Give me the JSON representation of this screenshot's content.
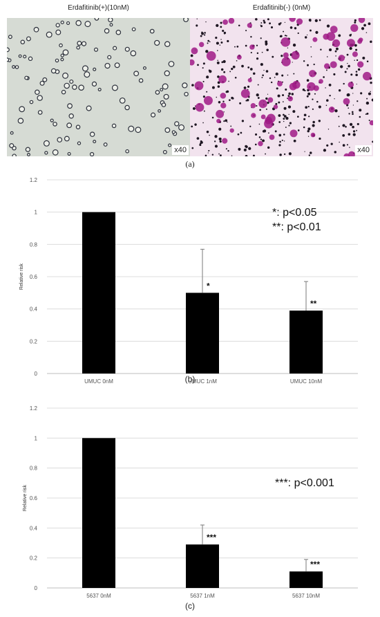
{
  "panel_a": {
    "left_title": "Erdafitinib(+)(10nM)",
    "right_title": "Erdafitinib(-) (0nM)",
    "left_mag": "x40",
    "right_mag": "x40",
    "label": "(a)",
    "left_bg": "#d6dbd4",
    "right_bg": "#f2e3ee",
    "stain_color": "#a01a86"
  },
  "chart_data": [
    {
      "type": "bar",
      "panel_label": "(b)",
      "categories": [
        "UMUC 0nM",
        "UMUC 1nM",
        "UMUC 10nM"
      ],
      "values": [
        1.0,
        0.5,
        0.39
      ],
      "error_upper": [
        0.0,
        0.27,
        0.18
      ],
      "significance": [
        "",
        "*",
        "**"
      ],
      "ylabel": "Relative risk",
      "ylim": [
        0,
        1.2
      ],
      "yticks": [
        "0",
        "0.2",
        "0.4",
        "0.6",
        "0.8",
        "1",
        "1.2"
      ],
      "legend_lines": [
        "*: p<0.05",
        "**: p<0.01"
      ],
      "grid": true
    },
    {
      "type": "bar",
      "panel_label": "(c)",
      "categories": [
        "5637 0nM",
        "5637 1nM",
        "5637 10nM"
      ],
      "values": [
        1.0,
        0.29,
        0.11
      ],
      "error_upper": [
        0.0,
        0.13,
        0.08
      ],
      "significance": [
        "",
        "***",
        "***"
      ],
      "ylabel": "Relative risk",
      "ylim": [
        0,
        1.2
      ],
      "yticks": [
        "0",
        "0.2",
        "0.4",
        "0.6",
        "0.8",
        "1",
        "1.2"
      ],
      "legend_lines": [
        "***: p<0.001"
      ],
      "grid": true
    }
  ]
}
